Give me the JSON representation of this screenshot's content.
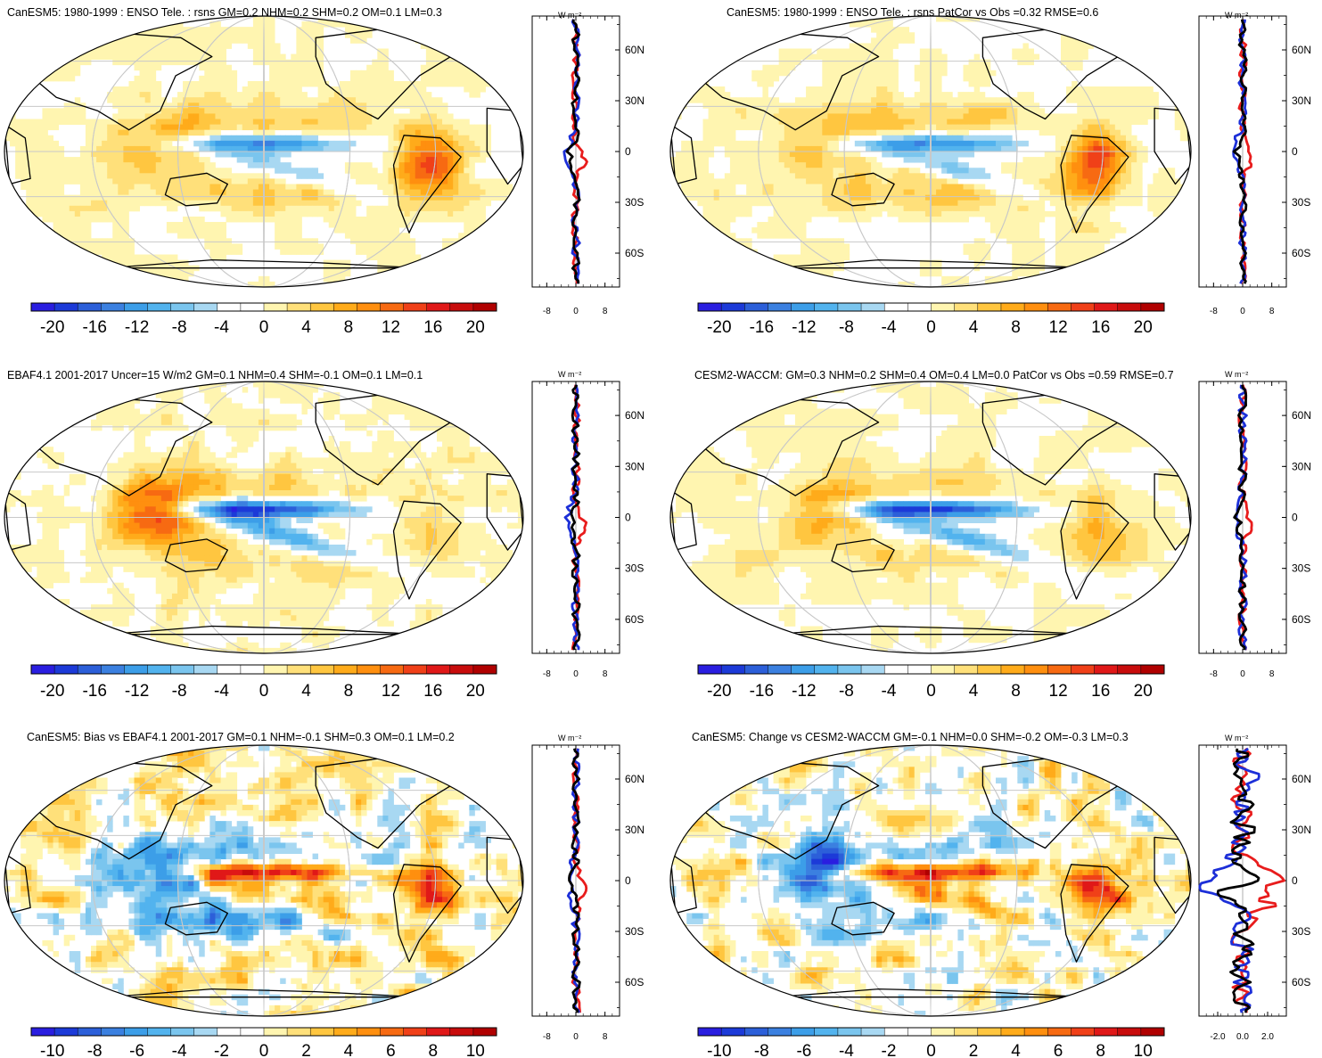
{
  "figure": {
    "colors": {
      "diverging_20": [
        "#2a1ee0",
        "#1c3ad8",
        "#2c5fd9",
        "#3b80e0",
        "#3c9ee8",
        "#52b3ee",
        "#7ac5ee",
        "#a8d8f2",
        "#ffffff",
        "#ffffff",
        "#fff5b0",
        "#ffe07a",
        "#ffc640",
        "#ffab1a",
        "#ff8f0f",
        "#f76a12",
        "#f04018",
        "#e01818",
        "#c80c0c",
        "#b00000"
      ],
      "land_outline": "#000000",
      "grid": "#c8c8c8",
      "line_nh_sh": "#e81c1c",
      "line_obs": "#1c2fd8",
      "line_model": "#000000"
    },
    "icon_units": "W m⁻²"
  },
  "chart_data": [
    {
      "type": "heatmap",
      "id": "panel-1",
      "title": "CanESM5: 1980-1999 : ENSO Tele. : rsns GM=0.2 NHM=0.2 SHM=0.2 OM=0.1 LM=0.3",
      "colorbar": {
        "labels": [
          "-20",
          "-16",
          "-12",
          "-8",
          "-4",
          "0",
          "4",
          "8",
          "12",
          "16",
          "20"
        ],
        "range": [
          -22,
          22
        ]
      },
      "zonal": {
        "units": "W m⁻²",
        "xlabels": [
          "-8",
          "0",
          "8"
        ],
        "xrange": [
          -12,
          12
        ],
        "ylabels": [
          "60N",
          "30N",
          "0",
          "30S",
          "60S"
        ]
      },
      "features": {
        "eq_cold_tongue": -14,
        "maritime_warm": 6,
        "amazon_warm": 14,
        "subtrop_warm": 5
      }
    },
    {
      "type": "heatmap",
      "id": "panel-2",
      "title": "CanESM5: 1980-1999 : ENSO Tele. : rsns PatCor vs Obs =0.32 RMSE=0.6",
      "colorbar": {
        "labels": [
          "-20",
          "-16",
          "-12",
          "-8",
          "-4",
          "0",
          "4",
          "8",
          "12",
          "16",
          "20"
        ],
        "range": [
          -22,
          22
        ]
      },
      "zonal": {
        "units": "W m⁻²",
        "xlabels": [
          "-8",
          "0",
          "8"
        ],
        "xrange": [
          -12,
          12
        ],
        "ylabels": [
          "60N",
          "30N",
          "0",
          "30S",
          "60S"
        ]
      },
      "features": {
        "eq_cold_tongue": -14,
        "maritime_warm": 6,
        "amazon_warm": 14,
        "subtrop_warm": 5
      }
    },
    {
      "type": "heatmap",
      "id": "panel-3",
      "title": "EBAF4.1 2001-2017 Uncer=15 W/m2 GM=0.1 NHM=0.4 SHM=-0.1 OM=0.1 LM=0.1",
      "colorbar": {
        "labels": [
          "-20",
          "-16",
          "-12",
          "-8",
          "-4",
          "0",
          "4",
          "8",
          "12",
          "16",
          "20"
        ],
        "range": [
          -22,
          22
        ]
      },
      "zonal": {
        "units": "W m⁻²",
        "xlabels": [
          "-8",
          "0",
          "8"
        ],
        "xrange": [
          -12,
          12
        ],
        "ylabels": [
          "60N",
          "30N",
          "0",
          "30S",
          "60S"
        ]
      },
      "features": {
        "eq_cold_tongue": -20,
        "maritime_warm": 14,
        "amazon_warm": 4,
        "subtrop_warm": 4
      }
    },
    {
      "type": "heatmap",
      "id": "panel-4",
      "title": "CESM2-WACCM: GM=0.3 NHM=0.2 SHM=0.4 OM=0.4 LM=0.0 PatCor vs Obs =0.59 RMSE=0.7",
      "colorbar": {
        "labels": [
          "-20",
          "-16",
          "-12",
          "-8",
          "-4",
          "0",
          "4",
          "8",
          "12",
          "16",
          "20"
        ],
        "range": [
          -22,
          22
        ]
      },
      "zonal": {
        "units": "W m⁻²",
        "xlabels": [
          "-8",
          "0",
          "8"
        ],
        "xrange": [
          -12,
          12
        ],
        "ylabels": [
          "60N",
          "30N",
          "0",
          "30S",
          "60S"
        ]
      },
      "features": {
        "eq_cold_tongue": -20,
        "maritime_warm": 8,
        "amazon_warm": 6,
        "subtrop_warm": 4
      }
    },
    {
      "type": "heatmap",
      "id": "panel-5",
      "title": "CanESM5: Bias vs EBAF4.1 2001-2017 GM=0.1 NHM=-0.1 SHM=0.3 OM=0.1 LM=0.2",
      "colorbar": {
        "labels": [
          "-10",
          "-8",
          "-6",
          "-4",
          "-2",
          "0",
          "2",
          "4",
          "6",
          "8",
          "10"
        ],
        "range": [
          -11,
          11
        ]
      },
      "zonal": {
        "units": "W m⁻²",
        "xlabels": [
          "-8",
          "0",
          "8"
        ],
        "xrange": [
          -12,
          12
        ],
        "ylabels": [
          "60N",
          "30N",
          "0",
          "30S",
          "60S"
        ]
      },
      "features": {
        "eq_cold_tongue": 9,
        "maritime_warm": -8,
        "amazon_warm": 7,
        "subtrop_warm": -4
      }
    },
    {
      "type": "heatmap",
      "id": "panel-6",
      "title": "CanESM5: Change vs CESM2-WACCM GM=-0.1 NHM=0.0 SHM=-0.2 OM=-0.3 LM=0.3",
      "colorbar": {
        "labels": [
          "-10",
          "-8",
          "-6",
          "-4",
          "-2",
          "0",
          "2",
          "4",
          "6",
          "8",
          "10"
        ],
        "range": [
          -11,
          11
        ]
      },
      "zonal": {
        "units": "W m⁻²",
        "xlabels": [
          "-2.0",
          "0.0",
          "2.0"
        ],
        "xrange": [
          -3.5,
          3.5
        ],
        "ylabels": [
          "60N",
          "30N",
          "0",
          "30S",
          "60S"
        ]
      },
      "features": {
        "eq_cold_tongue": 9,
        "maritime_warm": -8,
        "amazon_warm": 9,
        "subtrop_warm": -4
      }
    }
  ]
}
